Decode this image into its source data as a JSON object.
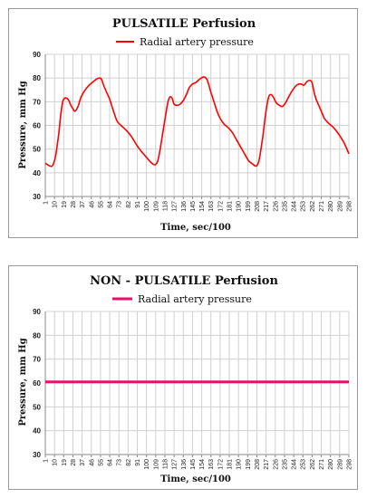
{
  "chart_data": [
    {
      "type": "line",
      "title": "PULSATILE Perfusion",
      "xlabel": "Time, sec/100",
      "ylabel": "Pressure, mm Hg",
      "ylim": [
        30,
        90
      ],
      "yticks": [
        30,
        40,
        50,
        60,
        70,
        80,
        90
      ],
      "xlim": [
        1,
        298
      ],
      "xticks": [
        1,
        10,
        19,
        28,
        37,
        46,
        55,
        64,
        73,
        82,
        91,
        100,
        109,
        118,
        127,
        136,
        145,
        154,
        163,
        172,
        181,
        190,
        199,
        208,
        217,
        226,
        235,
        244,
        253,
        262,
        271,
        280,
        289,
        298
      ],
      "grid": true,
      "legend": "top-center",
      "series": [
        {
          "name": "Radial artery pressure",
          "color": "#ff0000",
          "x": [
            1,
            5,
            8,
            11,
            14,
            16,
            18,
            20,
            22,
            24,
            26,
            28,
            30,
            33,
            36,
            40,
            44,
            48,
            51,
            54,
            56,
            58,
            61,
            64,
            67,
            71,
            75,
            80,
            85,
            90,
            95,
            100,
            104,
            107,
            109,
            111,
            113,
            116,
            119,
            121,
            123,
            125,
            127,
            130,
            133,
            136,
            139,
            142,
            145,
            148,
            152,
            156,
            159,
            161,
            163,
            166,
            169,
            172,
            176,
            180,
            184,
            188,
            192,
            196,
            200,
            203,
            206,
            208,
            210,
            212,
            214,
            216,
            218,
            220,
            222,
            224,
            227,
            230,
            233,
            236,
            239,
            243,
            247,
            251,
            254,
            257,
            260,
            262,
            264,
            266,
            268,
            271,
            274,
            278,
            282,
            286,
            290,
            294,
            298
          ],
          "values": [
            44,
            43,
            43,
            47,
            56,
            64,
            70,
            71.5,
            71.5,
            70.5,
            68.5,
            67,
            66,
            68,
            72,
            75,
            77,
            78.5,
            79.5,
            80,
            79.5,
            77,
            74,
            71,
            67,
            62,
            60,
            58,
            55.5,
            52,
            49,
            46.5,
            44.5,
            43.5,
            43.5,
            45,
            49,
            57,
            65,
            70,
            72,
            71.5,
            69,
            68.5,
            69,
            70.5,
            73,
            76,
            77.5,
            78,
            79.5,
            80.5,
            79.5,
            77,
            74,
            70,
            66,
            63,
            60.5,
            59,
            57,
            54,
            51,
            48,
            45,
            44,
            43,
            43,
            45,
            50,
            56,
            63,
            69,
            72.5,
            73,
            72,
            69.5,
            68.5,
            68,
            69.5,
            72,
            75,
            77,
            77.5,
            77,
            78.5,
            79,
            78,
            74,
            71,
            69,
            66,
            63,
            61,
            59.5,
            57.5,
            55,
            52,
            48
          ]
        }
      ]
    },
    {
      "type": "line",
      "title": "NON - PULSATILE Perfusion",
      "xlabel": "Time, sec/100",
      "ylabel": "Pressure, mm Hg",
      "ylim": [
        30,
        90
      ],
      "yticks": [
        30,
        40,
        50,
        60,
        70,
        80,
        90
      ],
      "xlim": [
        1,
        298
      ],
      "xticks": [
        1,
        10,
        19,
        28,
        37,
        46,
        55,
        64,
        73,
        82,
        91,
        100,
        109,
        118,
        127,
        136,
        145,
        154,
        163,
        172,
        181,
        190,
        199,
        208,
        217,
        226,
        235,
        244,
        253,
        262,
        271,
        280,
        289,
        298
      ],
      "grid": true,
      "legend": "top-center",
      "series": [
        {
          "name": "Radial artery pressure",
          "color": "#e8106a",
          "x": [
            1,
            298
          ],
          "values": [
            60.5,
            60.5
          ]
        }
      ]
    }
  ]
}
